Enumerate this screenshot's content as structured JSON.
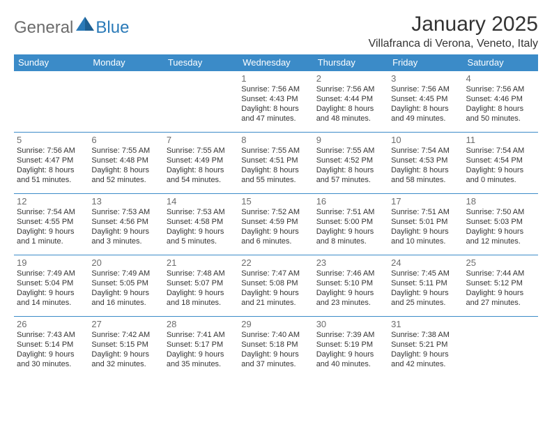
{
  "logo": {
    "part1": "General",
    "part2": "Blue"
  },
  "title": "January 2025",
  "location": "Villafranca di Verona, Veneto, Italy",
  "colors": {
    "header_bg": "#3b8bc8",
    "header_text": "#ffffff",
    "cell_border": "#3b8bc8",
    "daynum_color": "#6c6c6c",
    "body_text": "#333333",
    "logo_gray": "#6c6c6c",
    "logo_blue": "#2a7ab8"
  },
  "weekdays": [
    "Sunday",
    "Monday",
    "Tuesday",
    "Wednesday",
    "Thursday",
    "Friday",
    "Saturday"
  ],
  "weeks": [
    [
      {
        "day": "",
        "sunrise": "",
        "sunset": "",
        "daylight": ""
      },
      {
        "day": "",
        "sunrise": "",
        "sunset": "",
        "daylight": ""
      },
      {
        "day": "",
        "sunrise": "",
        "sunset": "",
        "daylight": ""
      },
      {
        "day": "1",
        "sunrise": "Sunrise: 7:56 AM",
        "sunset": "Sunset: 4:43 PM",
        "daylight": "Daylight: 8 hours and 47 minutes."
      },
      {
        "day": "2",
        "sunrise": "Sunrise: 7:56 AM",
        "sunset": "Sunset: 4:44 PM",
        "daylight": "Daylight: 8 hours and 48 minutes."
      },
      {
        "day": "3",
        "sunrise": "Sunrise: 7:56 AM",
        "sunset": "Sunset: 4:45 PM",
        "daylight": "Daylight: 8 hours and 49 minutes."
      },
      {
        "day": "4",
        "sunrise": "Sunrise: 7:56 AM",
        "sunset": "Sunset: 4:46 PM",
        "daylight": "Daylight: 8 hours and 50 minutes."
      }
    ],
    [
      {
        "day": "5",
        "sunrise": "Sunrise: 7:56 AM",
        "sunset": "Sunset: 4:47 PM",
        "daylight": "Daylight: 8 hours and 51 minutes."
      },
      {
        "day": "6",
        "sunrise": "Sunrise: 7:55 AM",
        "sunset": "Sunset: 4:48 PM",
        "daylight": "Daylight: 8 hours and 52 minutes."
      },
      {
        "day": "7",
        "sunrise": "Sunrise: 7:55 AM",
        "sunset": "Sunset: 4:49 PM",
        "daylight": "Daylight: 8 hours and 54 minutes."
      },
      {
        "day": "8",
        "sunrise": "Sunrise: 7:55 AM",
        "sunset": "Sunset: 4:51 PM",
        "daylight": "Daylight: 8 hours and 55 minutes."
      },
      {
        "day": "9",
        "sunrise": "Sunrise: 7:55 AM",
        "sunset": "Sunset: 4:52 PM",
        "daylight": "Daylight: 8 hours and 57 minutes."
      },
      {
        "day": "10",
        "sunrise": "Sunrise: 7:54 AM",
        "sunset": "Sunset: 4:53 PM",
        "daylight": "Daylight: 8 hours and 58 minutes."
      },
      {
        "day": "11",
        "sunrise": "Sunrise: 7:54 AM",
        "sunset": "Sunset: 4:54 PM",
        "daylight": "Daylight: 9 hours and 0 minutes."
      }
    ],
    [
      {
        "day": "12",
        "sunrise": "Sunrise: 7:54 AM",
        "sunset": "Sunset: 4:55 PM",
        "daylight": "Daylight: 9 hours and 1 minute."
      },
      {
        "day": "13",
        "sunrise": "Sunrise: 7:53 AM",
        "sunset": "Sunset: 4:56 PM",
        "daylight": "Daylight: 9 hours and 3 minutes."
      },
      {
        "day": "14",
        "sunrise": "Sunrise: 7:53 AM",
        "sunset": "Sunset: 4:58 PM",
        "daylight": "Daylight: 9 hours and 5 minutes."
      },
      {
        "day": "15",
        "sunrise": "Sunrise: 7:52 AM",
        "sunset": "Sunset: 4:59 PM",
        "daylight": "Daylight: 9 hours and 6 minutes."
      },
      {
        "day": "16",
        "sunrise": "Sunrise: 7:51 AM",
        "sunset": "Sunset: 5:00 PM",
        "daylight": "Daylight: 9 hours and 8 minutes."
      },
      {
        "day": "17",
        "sunrise": "Sunrise: 7:51 AM",
        "sunset": "Sunset: 5:01 PM",
        "daylight": "Daylight: 9 hours and 10 minutes."
      },
      {
        "day": "18",
        "sunrise": "Sunrise: 7:50 AM",
        "sunset": "Sunset: 5:03 PM",
        "daylight": "Daylight: 9 hours and 12 minutes."
      }
    ],
    [
      {
        "day": "19",
        "sunrise": "Sunrise: 7:49 AM",
        "sunset": "Sunset: 5:04 PM",
        "daylight": "Daylight: 9 hours and 14 minutes."
      },
      {
        "day": "20",
        "sunrise": "Sunrise: 7:49 AM",
        "sunset": "Sunset: 5:05 PM",
        "daylight": "Daylight: 9 hours and 16 minutes."
      },
      {
        "day": "21",
        "sunrise": "Sunrise: 7:48 AM",
        "sunset": "Sunset: 5:07 PM",
        "daylight": "Daylight: 9 hours and 18 minutes."
      },
      {
        "day": "22",
        "sunrise": "Sunrise: 7:47 AM",
        "sunset": "Sunset: 5:08 PM",
        "daylight": "Daylight: 9 hours and 21 minutes."
      },
      {
        "day": "23",
        "sunrise": "Sunrise: 7:46 AM",
        "sunset": "Sunset: 5:10 PM",
        "daylight": "Daylight: 9 hours and 23 minutes."
      },
      {
        "day": "24",
        "sunrise": "Sunrise: 7:45 AM",
        "sunset": "Sunset: 5:11 PM",
        "daylight": "Daylight: 9 hours and 25 minutes."
      },
      {
        "day": "25",
        "sunrise": "Sunrise: 7:44 AM",
        "sunset": "Sunset: 5:12 PM",
        "daylight": "Daylight: 9 hours and 27 minutes."
      }
    ],
    [
      {
        "day": "26",
        "sunrise": "Sunrise: 7:43 AM",
        "sunset": "Sunset: 5:14 PM",
        "daylight": "Daylight: 9 hours and 30 minutes."
      },
      {
        "day": "27",
        "sunrise": "Sunrise: 7:42 AM",
        "sunset": "Sunset: 5:15 PM",
        "daylight": "Daylight: 9 hours and 32 minutes."
      },
      {
        "day": "28",
        "sunrise": "Sunrise: 7:41 AM",
        "sunset": "Sunset: 5:17 PM",
        "daylight": "Daylight: 9 hours and 35 minutes."
      },
      {
        "day": "29",
        "sunrise": "Sunrise: 7:40 AM",
        "sunset": "Sunset: 5:18 PM",
        "daylight": "Daylight: 9 hours and 37 minutes."
      },
      {
        "day": "30",
        "sunrise": "Sunrise: 7:39 AM",
        "sunset": "Sunset: 5:19 PM",
        "daylight": "Daylight: 9 hours and 40 minutes."
      },
      {
        "day": "31",
        "sunrise": "Sunrise: 7:38 AM",
        "sunset": "Sunset: 5:21 PM",
        "daylight": "Daylight: 9 hours and 42 minutes."
      },
      {
        "day": "",
        "sunrise": "",
        "sunset": "",
        "daylight": ""
      }
    ]
  ]
}
